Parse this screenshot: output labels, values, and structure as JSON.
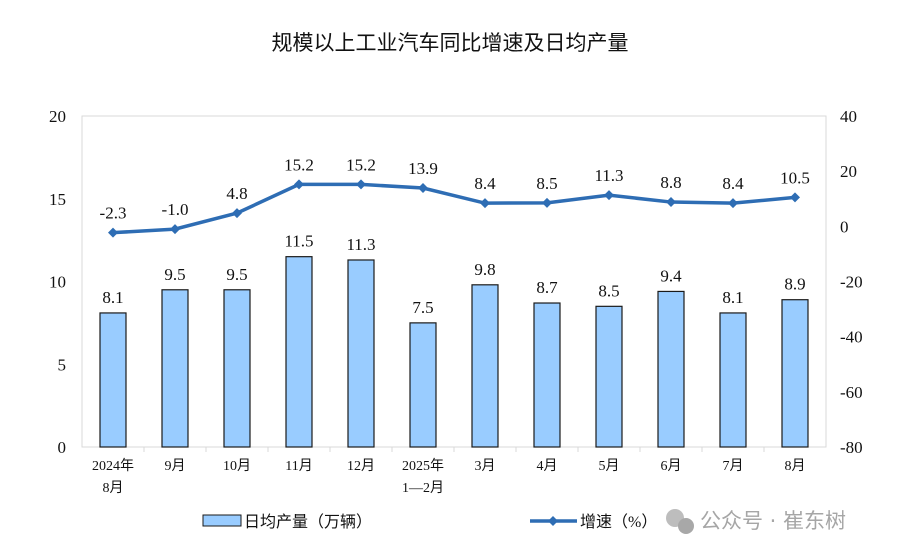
{
  "chart_data": {
    "type": "bar+line",
    "title": "规模以上工业汽车同比增速及日均产量",
    "categories": [
      [
        "2024年",
        "8月"
      ],
      [
        "9月"
      ],
      [
        "10月"
      ],
      [
        "11月"
      ],
      [
        "12月"
      ],
      [
        "2025年",
        "1—2月"
      ],
      [
        "3月"
      ],
      [
        "4月"
      ],
      [
        "5月"
      ],
      [
        "6月"
      ],
      [
        "7月"
      ],
      [
        "8月"
      ]
    ],
    "series": [
      {
        "name": "日均产量（万辆）",
        "type": "bar",
        "axis": "left",
        "values": [
          8.1,
          9.5,
          9.5,
          11.5,
          11.3,
          7.5,
          9.8,
          8.7,
          8.5,
          9.4,
          8.1,
          8.9
        ],
        "labels": [
          "8.1",
          "9.5",
          "9.5",
          "11.5",
          "11.3",
          "7.5",
          "9.8",
          "8.7",
          "8.5",
          "9.4",
          "8.1",
          "8.9"
        ]
      },
      {
        "name": "增速（%）",
        "type": "line",
        "axis": "right",
        "values": [
          -2.3,
          -1.0,
          4.8,
          15.2,
          15.2,
          13.9,
          8.4,
          8.5,
          11.3,
          8.8,
          8.4,
          10.5
        ],
        "labels": [
          "-2.3",
          "-1.0",
          "4.8",
          "15.2",
          "15.2",
          "13.9",
          "8.4",
          "8.5",
          "11.3",
          "8.8",
          "8.4",
          "10.5"
        ]
      }
    ],
    "ylim_left": [
      0,
      20
    ],
    "yticks_left": [
      "0",
      "5",
      "10",
      "15",
      "20"
    ],
    "ylim_right": [
      -80,
      40
    ],
    "yticks_right": [
      "-80",
      "-60",
      "-40",
      "-20",
      "0",
      "20",
      "40"
    ],
    "legend": "bottom",
    "colors": {
      "bar": "#99CCFF",
      "bar_edge": "#1a1a1a",
      "line": "#2E6DB4"
    }
  },
  "watermark": "公众号 · 崔东树"
}
